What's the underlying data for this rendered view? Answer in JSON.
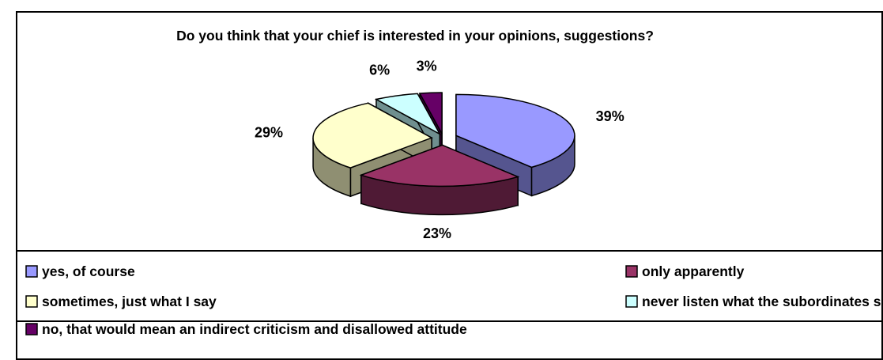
{
  "chart_data": {
    "type": "pie",
    "title": "Do you think that your chief is interested in your opinions, suggestions?",
    "categories": [
      "yes, of course",
      "only apparently",
      "sometimes, just what I say",
      "never listen what the subordinates say",
      "no, that would mean an indirect criticism and disallowed attitude"
    ],
    "values": [
      39,
      23,
      29,
      6,
      3
    ],
    "labels": [
      "39%",
      "23%",
      "29%",
      "6%",
      "3%"
    ],
    "colors": [
      "#9999ff",
      "#993366",
      "#ffffcc",
      "#ccffff",
      "#660066"
    ],
    "side_colors": [
      "#55558f",
      "#4f1a35",
      "#8f8f72",
      "#6f8f8f",
      "#3a003a"
    ],
    "legend_placement": "bottom"
  }
}
